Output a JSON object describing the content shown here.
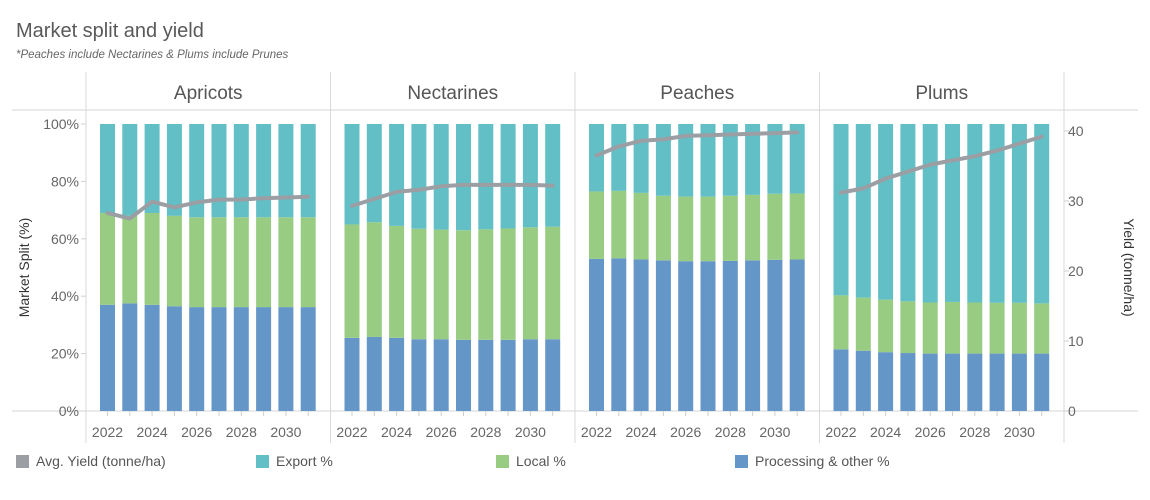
{
  "title": "Market split and yield",
  "subtitle": "*Peaches include Nectarines & Plums include Prunes",
  "colors": {
    "export": "#62bfc6",
    "local": "#97cc82",
    "processing": "#6596c8",
    "yield": "#9b9ea3"
  },
  "legend": [
    {
      "label": "Avg. Yield (tonne/ha)",
      "color": "#9b9ea3"
    },
    {
      "label": "Export %",
      "color": "#62bfc6"
    },
    {
      "label": "Local %",
      "color": "#97cc82"
    },
    {
      "label": "Processing & other %",
      "color": "#6596c8"
    }
  ],
  "chart_data": {
    "type": "bar",
    "stacked": true,
    "secondary_type": "line",
    "ylabel": "Market Split (%)",
    "ylabel_right": "Yield (tonne/ha)",
    "ylim": [
      0,
      100
    ],
    "ylim_right": [
      0,
      41
    ],
    "yticks": [
      "0%",
      "20%",
      "40%",
      "60%",
      "80%",
      "100%"
    ],
    "yticks_right": [
      "0",
      "10",
      "20",
      "30",
      "40"
    ],
    "x": [
      2022,
      2023,
      2024,
      2025,
      2026,
      2027,
      2028,
      2029,
      2030,
      2031
    ],
    "xtick_labels": [
      "2022",
      "2024",
      "2026",
      "2028",
      "2030"
    ],
    "panels": [
      {
        "name": "Apricots",
        "processing": [
          37,
          37.5,
          37,
          36.5,
          36.2,
          36.2,
          36.2,
          36.2,
          36.2,
          36.2
        ],
        "local": [
          32,
          30.5,
          32,
          31.5,
          31.3,
          31.3,
          31.3,
          31.3,
          31.3,
          31.3
        ],
        "export": [
          31,
          32,
          31,
          32,
          32.5,
          32.5,
          32.5,
          32.5,
          32.5,
          32.5
        ],
        "yield": [
          28.3,
          27.5,
          29.9,
          29.1,
          29.8,
          30.2,
          30.2,
          30.4,
          30.5,
          30.6
        ]
      },
      {
        "name": "Nectarines",
        "processing": [
          25.5,
          25.8,
          25.5,
          25,
          25,
          24.8,
          24.8,
          24.8,
          25,
          25
        ],
        "local": [
          39.5,
          40,
          39,
          38.5,
          38.2,
          38.2,
          38.5,
          38.8,
          39,
          39.2
        ],
        "export": [
          35,
          34.2,
          35.5,
          36.5,
          36.8,
          37,
          36.7,
          36.4,
          36,
          35.8
        ],
        "yield": [
          29.3,
          30.3,
          31.3,
          31.6,
          32.1,
          32.3,
          32.3,
          32.3,
          32.3,
          32.2
        ]
      },
      {
        "name": "Peaches",
        "processing": [
          53,
          53.2,
          52.8,
          52.5,
          52.2,
          52.2,
          52.3,
          52.5,
          52.7,
          52.8
        ],
        "local": [
          23.5,
          23.5,
          23.2,
          22.5,
          22.5,
          22.5,
          22.7,
          22.8,
          23,
          23
        ],
        "export": [
          23.5,
          23.3,
          24,
          25,
          25.3,
          25.3,
          25,
          24.7,
          24.3,
          24.2
        ],
        "yield": [
          36.5,
          37.8,
          38.6,
          38.8,
          39.3,
          39.4,
          39.5,
          39.6,
          39.7,
          39.8
        ]
      },
      {
        "name": "Plums",
        "processing": [
          21.5,
          21,
          20.5,
          20.2,
          20,
          20,
          20,
          20,
          20,
          20
        ],
        "local": [
          18.8,
          18.5,
          18.3,
          18,
          17.8,
          18,
          17.8,
          17.7,
          17.7,
          17.5
        ],
        "export": [
          59.7,
          60.5,
          61.2,
          61.8,
          62.2,
          62,
          62.2,
          62.3,
          62.3,
          62.5
        ],
        "yield": [
          31.2,
          31.8,
          33.2,
          34.2,
          35.2,
          35.8,
          36.4,
          37.2,
          38.2,
          39.2
        ]
      }
    ]
  }
}
